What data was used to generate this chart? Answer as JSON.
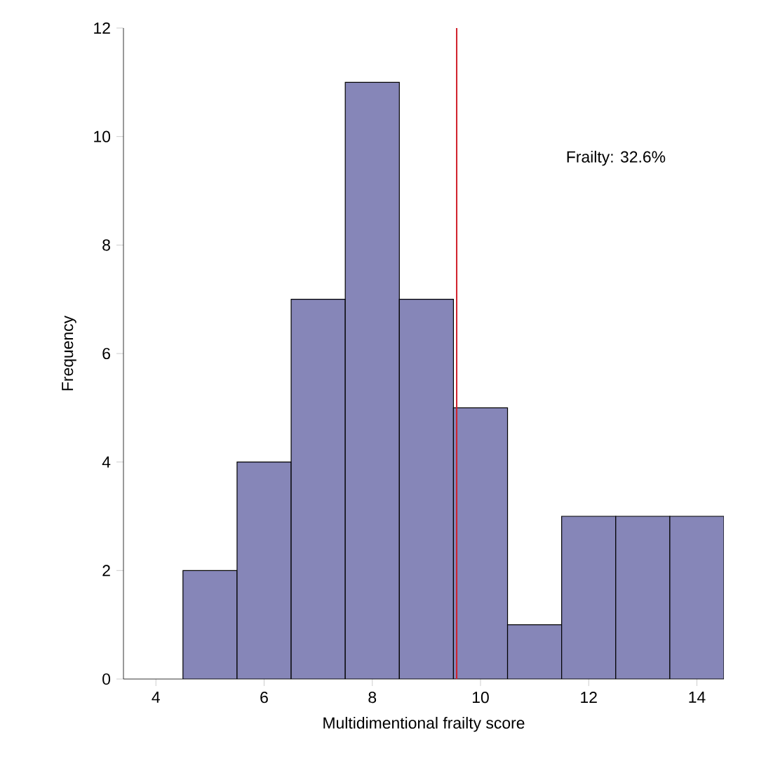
{
  "chart_data": {
    "type": "histogram",
    "xlabel": "Multidimentional frailty score",
    "ylabel": "Frequency",
    "bins": [
      4.5,
      5.5,
      6.5,
      7.5,
      8.5,
      9.5,
      10.5,
      11.5,
      12.5,
      13.5,
      14.5
    ],
    "values": [
      2,
      4,
      7,
      11,
      7,
      5,
      1,
      3,
      3,
      3
    ],
    "color": "#8686b8",
    "xlim": [
      3.4,
      14.5
    ],
    "ylim": [
      0,
      12
    ],
    "xticks": [
      4,
      6,
      8,
      10,
      12,
      14
    ],
    "yticks": [
      0,
      2,
      4,
      6,
      8,
      10,
      12
    ],
    "ref_lines": [
      {
        "axis": "x",
        "value": 9.56,
        "color": "#d0202a"
      }
    ],
    "annotations": [
      "Frailty: 32.6%"
    ],
    "grid": false
  }
}
